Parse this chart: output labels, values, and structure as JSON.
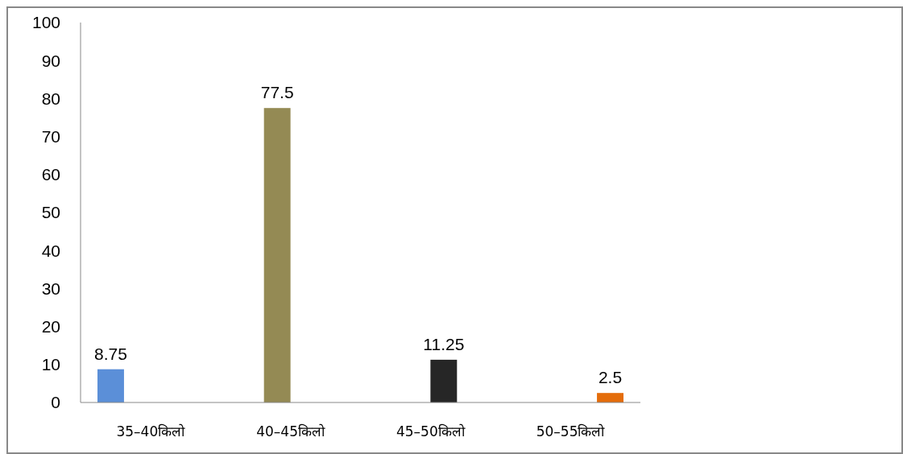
{
  "chart_data": {
    "type": "bar",
    "categories": [
      "35–40किलो",
      "40–45किलो",
      "45–50किलो",
      "50–55किलो"
    ],
    "series": [
      {
        "color": "#5b8fd8",
        "values": [
          8.75,
          null,
          null,
          null
        ]
      },
      {
        "color": "#948a54",
        "values": [
          null,
          77.5,
          null,
          null
        ]
      },
      {
        "color": "#262626",
        "values": [
          null,
          null,
          11.25,
          null
        ]
      },
      {
        "color": "#e46c0a",
        "values": [
          null,
          null,
          null,
          2.5
        ]
      }
    ],
    "ylim": [
      0,
      100
    ],
    "yticks": [
      0,
      10,
      20,
      30,
      40,
      50,
      60,
      70,
      80,
      90,
      100
    ],
    "grid": false,
    "data_labels": true
  }
}
